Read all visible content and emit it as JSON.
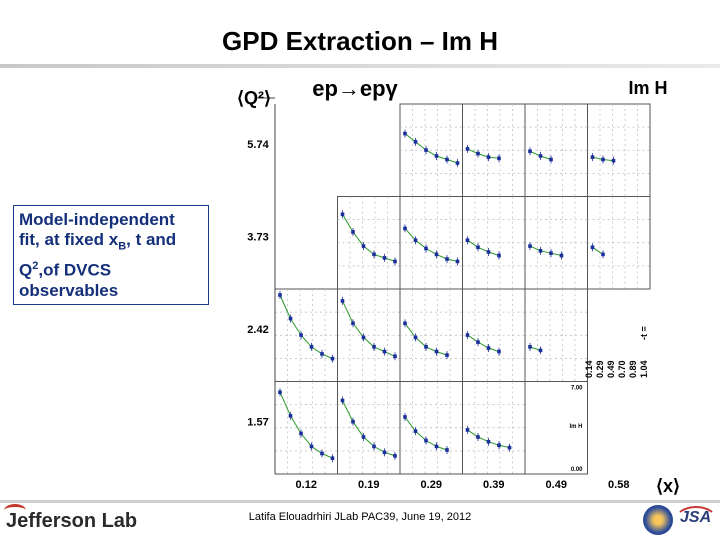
{
  "title": "GPD Extraction – Im H",
  "infobox": {
    "line1": "Model-independent",
    "line2a": "fit, at fixed x",
    "line2b": "B",
    "line2c": ", t and",
    "line3a": "Q",
    "line3b": "2",
    "line3c": ",of DVCS",
    "line4": "observables"
  },
  "footer": "Latifa Elouadrhiri  JLab PAC39, June 19, 2012",
  "logos": {
    "jlab": "Jefferson Lab",
    "jsa": "JSA"
  },
  "colors": {
    "title": "#000000",
    "box_text": "#15307a",
    "points": "#1a2f9a",
    "fit": "#2a9a2a"
  },
  "chart_data": {
    "type": "scatter",
    "reaction_label": "ep→epγ",
    "quantity_label": "Im H",
    "xlabel": "⟨x⟩",
    "ylabel": "⟨Q²⟩",
    "q2_values": [
      "5.74",
      "3.73",
      "2.42",
      "1.57"
    ],
    "x_values": [
      "0.12",
      "0.19",
      "0.29",
      "0.39",
      "0.49",
      "0.58"
    ],
    "t_axis_label": "-t = ",
    "t_values": [
      "0.14",
      "0.29",
      "0.49",
      "0.70",
      "0.89",
      "1.04"
    ],
    "legend_panel": {
      "ymax": "7.00",
      "ymin": "0.00",
      "label": "Im H"
    },
    "ylim": [
      0,
      7
    ],
    "panels": [
      {
        "q2": "5.74",
        "x": "0.29",
        "has_fit": true,
        "values": [
          5.0,
          4.3,
          3.6,
          3.1,
          2.8,
          2.5
        ]
      },
      {
        "q2": "5.74",
        "x": "0.39",
        "has_fit": true,
        "values": [
          3.7,
          3.3,
          3.0,
          2.9
        ]
      },
      {
        "q2": "5.74",
        "x": "0.49",
        "has_fit": true,
        "values": [
          3.5,
          3.1,
          2.8
        ]
      },
      {
        "q2": "5.74",
        "x": "0.58",
        "has_fit": true,
        "values": [
          3.0,
          2.8,
          2.7
        ]
      },
      {
        "q2": "3.73",
        "x": "0.19",
        "has_fit": true,
        "values": [
          6.0,
          4.5,
          3.3,
          2.6,
          2.3,
          2.0
        ]
      },
      {
        "q2": "3.73",
        "x": "0.29",
        "has_fit": true,
        "values": [
          4.8,
          3.8,
          3.1,
          2.6,
          2.2,
          2.0
        ]
      },
      {
        "q2": "3.73",
        "x": "0.39",
        "has_fit": true,
        "values": [
          3.8,
          3.2,
          2.8,
          2.5
        ]
      },
      {
        "q2": "3.73",
        "x": "0.49",
        "has_fit": true,
        "values": [
          3.3,
          2.9,
          2.7,
          2.5
        ]
      },
      {
        "q2": "3.73",
        "x": "0.58",
        "has_fit": true,
        "values": [
          3.2,
          2.6
        ]
      },
      {
        "q2": "2.42",
        "x": "0.12",
        "has_fit": true,
        "values": [
          7.0,
          5.0,
          3.6,
          2.6,
          2.0,
          1.6
        ]
      },
      {
        "q2": "2.42",
        "x": "0.19",
        "has_fit": true,
        "values": [
          6.5,
          4.6,
          3.4,
          2.6,
          2.2,
          1.8
        ]
      },
      {
        "q2": "2.42",
        "x": "0.29",
        "has_fit": true,
        "values": [
          4.6,
          3.4,
          2.6,
          2.2,
          1.9
        ]
      },
      {
        "q2": "2.42",
        "x": "0.39",
        "has_fit": true,
        "values": [
          3.6,
          3.0,
          2.5,
          2.2
        ]
      },
      {
        "q2": "2.42",
        "x": "0.49",
        "has_fit": true,
        "values": [
          2.6,
          2.3
        ]
      },
      {
        "q2": "1.57",
        "x": "0.12",
        "has_fit": true,
        "values": [
          6.6,
          4.6,
          3.1,
          2.0,
          1.4,
          1.0
        ]
      },
      {
        "q2": "1.57",
        "x": "0.19",
        "has_fit": true,
        "values": [
          5.9,
          4.1,
          2.8,
          2.0,
          1.5,
          1.2
        ]
      },
      {
        "q2": "1.57",
        "x": "0.29",
        "has_fit": true,
        "values": [
          4.5,
          3.3,
          2.5,
          2.0,
          1.7
        ]
      },
      {
        "q2": "1.57",
        "x": "0.39",
        "has_fit": true,
        "values": [
          3.4,
          2.8,
          2.4,
          2.1,
          1.9
        ]
      }
    ]
  }
}
